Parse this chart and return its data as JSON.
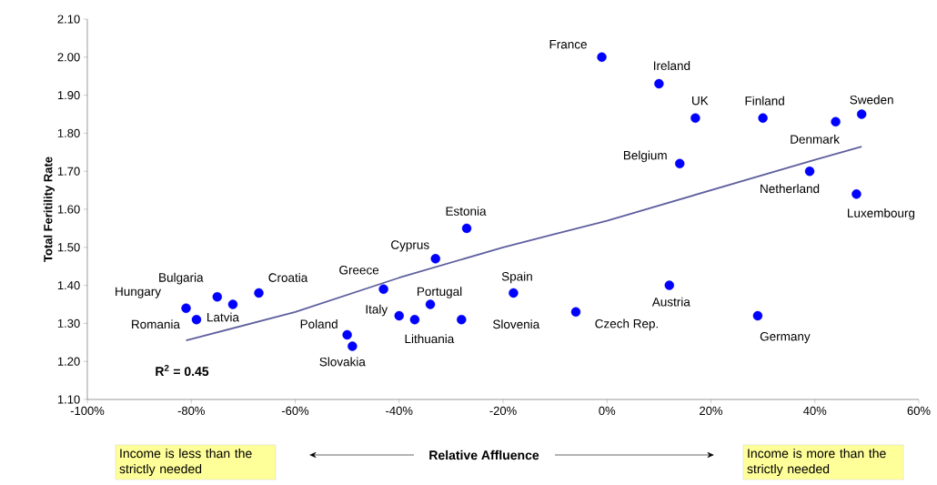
{
  "chart_data": {
    "type": "scatter",
    "xlabel": "Relative Affluence",
    "ylabel": "Total Feritility Rate",
    "xlim": [
      -100,
      60
    ],
    "ylim": [
      1.1,
      2.1
    ],
    "xticks": [
      {
        "value": -100,
        "label": "-100%"
      },
      {
        "value": -80,
        "label": "-80%"
      },
      {
        "value": -60,
        "label": "-60%"
      },
      {
        "value": -40,
        "label": "-40%"
      },
      {
        "value": -20,
        "label": "-20%"
      },
      {
        "value": 0,
        "label": "0%"
      },
      {
        "value": 20,
        "label": "20%"
      },
      {
        "value": 40,
        "label": "40%"
      },
      {
        "value": 60,
        "label": "60%"
      }
    ],
    "yticks": [
      {
        "value": 1.1,
        "label": "1.10"
      },
      {
        "value": 1.2,
        "label": "1.20"
      },
      {
        "value": 1.3,
        "label": "1.30"
      },
      {
        "value": 1.4,
        "label": "1.40"
      },
      {
        "value": 1.5,
        "label": "1.50"
      },
      {
        "value": 1.6,
        "label": "1.60"
      },
      {
        "value": 1.7,
        "label": "1.70"
      },
      {
        "value": 1.8,
        "label": "1.80"
      },
      {
        "value": 1.9,
        "label": "1.90"
      },
      {
        "value": 2.0,
        "label": "2.00"
      },
      {
        "value": 2.1,
        "label": "2.10"
      }
    ],
    "series": [
      {
        "color": "#0000ff",
        "marker": "circle",
        "x": [
          -1,
          10,
          17,
          30,
          49,
          44,
          14,
          39,
          48,
          -27,
          -33,
          -18,
          -43,
          -34,
          -67,
          -75,
          -72,
          -81,
          -79,
          -40,
          -37,
          -28,
          -6,
          12,
          29,
          -50,
          -49
        ],
        "values": [
          2.0,
          1.93,
          1.84,
          1.84,
          1.85,
          1.83,
          1.72,
          1.7,
          1.64,
          1.55,
          1.47,
          1.38,
          1.39,
          1.35,
          1.38,
          1.37,
          1.35,
          1.34,
          1.31,
          1.32,
          1.31,
          1.31,
          1.33,
          1.4,
          1.32,
          1.27,
          1.24
        ]
      },
      {
        "type": "line",
        "color": "#5f5f9f",
        "marker": "none",
        "line_style": "solid",
        "x": [
          -81,
          -60,
          -40,
          -20,
          -10,
          0,
          20,
          40,
          49
        ],
        "values": [
          1.255,
          1.33,
          1.42,
          1.5,
          1.535,
          1.57,
          1.65,
          1.73,
          1.765
        ]
      }
    ],
    "annotations": [
      {
        "text": "France",
        "x": -1,
        "y": 2.0
      },
      {
        "text": "Ireland",
        "x": 10,
        "y": 1.93
      },
      {
        "text": "UK",
        "x": 17,
        "y": 1.84
      },
      {
        "text": "Finland",
        "x": 30,
        "y": 1.84
      },
      {
        "text": "Sweden",
        "x": 49,
        "y": 1.85
      },
      {
        "text": "Denmark",
        "x": 44,
        "y": 1.83
      },
      {
        "text": "Belgium",
        "x": 14,
        "y": 1.72
      },
      {
        "text": "Netherland",
        "x": 39,
        "y": 1.7
      },
      {
        "text": "Luxembourg",
        "x": 48,
        "y": 1.64
      },
      {
        "text": "Estonia",
        "x": -27,
        "y": 1.55
      },
      {
        "text": "Cyprus",
        "x": -33,
        "y": 1.47
      },
      {
        "text": "Spain",
        "x": -18,
        "y": 1.38
      },
      {
        "text": "Greece",
        "x": -43,
        "y": 1.39
      },
      {
        "text": "Portugal",
        "x": -34,
        "y": 1.35
      },
      {
        "text": "Croatia",
        "x": -67,
        "y": 1.38
      },
      {
        "text": "Bulgaria",
        "x": -75,
        "y": 1.37
      },
      {
        "text": "Latvia",
        "x": -72,
        "y": 1.35
      },
      {
        "text": "Hungary",
        "x": -81,
        "y": 1.34
      },
      {
        "text": "Romania",
        "x": -79,
        "y": 1.31
      },
      {
        "text": "Italy",
        "x": -40,
        "y": 1.32
      },
      {
        "text": "Lithuania",
        "x": -37,
        "y": 1.31
      },
      {
        "text": "Slovenia",
        "x": -28,
        "y": 1.31
      },
      {
        "text": "Czech Rep.",
        "x": -6,
        "y": 1.33
      },
      {
        "text": "Austria",
        "x": 12,
        "y": 1.4
      },
      {
        "text": "Germany",
        "x": 29,
        "y": 1.32
      },
      {
        "text": "Poland",
        "x": -50,
        "y": 1.27
      },
      {
        "text": "Slovakia",
        "x": -49,
        "y": 1.24
      },
      "R$^{2}$ = 0.45",
      "Income is less than the strictly needed",
      "Income is more than the strictly needed"
    ]
  }
}
